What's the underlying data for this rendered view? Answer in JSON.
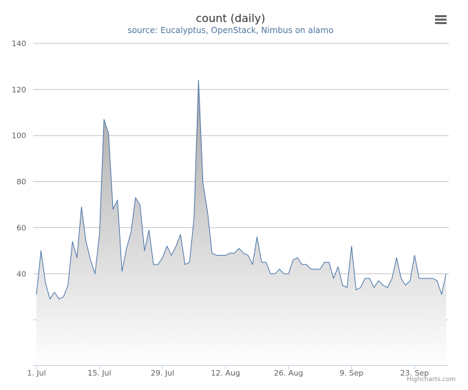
{
  "chart_data": {
    "type": "area",
    "title": "count (daily)",
    "subtitle": "source: Eucalyptus, OpenStack, Nimbus on alamo",
    "credits": "Highcharts.com",
    "ylim": [
      0,
      140
    ],
    "yticks": [
      40,
      60,
      80,
      100,
      120,
      140
    ],
    "ytick_labels": [
      "40",
      "60",
      "80",
      "100",
      "120",
      "140"
    ],
    "x_start": "1. Jul",
    "xticks_day_index": [
      0,
      14,
      28,
      42,
      56,
      70,
      84
    ],
    "xtick_labels": [
      "1. Jul",
      "15. Jul",
      "29. Jul",
      "12. Aug",
      "26. Aug",
      "9. Sep",
      "23. Sep"
    ],
    "grid": true,
    "legend": "none",
    "colors": {
      "line": "#4572a7",
      "fill_top": "#a6a6a6",
      "fill_bottom": "#ffffff",
      "grid": "#c0c0c0",
      "axis": "#c0d0e0"
    },
    "series": [
      {
        "values": [
          31,
          50,
          36,
          29,
          32,
          29,
          30,
          35,
          54,
          47,
          69,
          54,
          46,
          40,
          57,
          107,
          101,
          68,
          72,
          41,
          51,
          58,
          73,
          70,
          50,
          59,
          44,
          44,
          47,
          52,
          48,
          52,
          57,
          44,
          45,
          64,
          124,
          79,
          67,
          49,
          48,
          48,
          48,
          49,
          49,
          51,
          49,
          48,
          44,
          56,
          45,
          45,
          40,
          40,
          42,
          40,
          40,
          46,
          47,
          44,
          44,
          42,
          42,
          42,
          45,
          45,
          38,
          43,
          35,
          34,
          52,
          33,
          34,
          38,
          38,
          34,
          37,
          35,
          34,
          38,
          47,
          38,
          35,
          37,
          48,
          38,
          38,
          38,
          38,
          37,
          31,
          40
        ]
      }
    ]
  },
  "menu": {
    "icon": "hamburger-menu-icon"
  }
}
